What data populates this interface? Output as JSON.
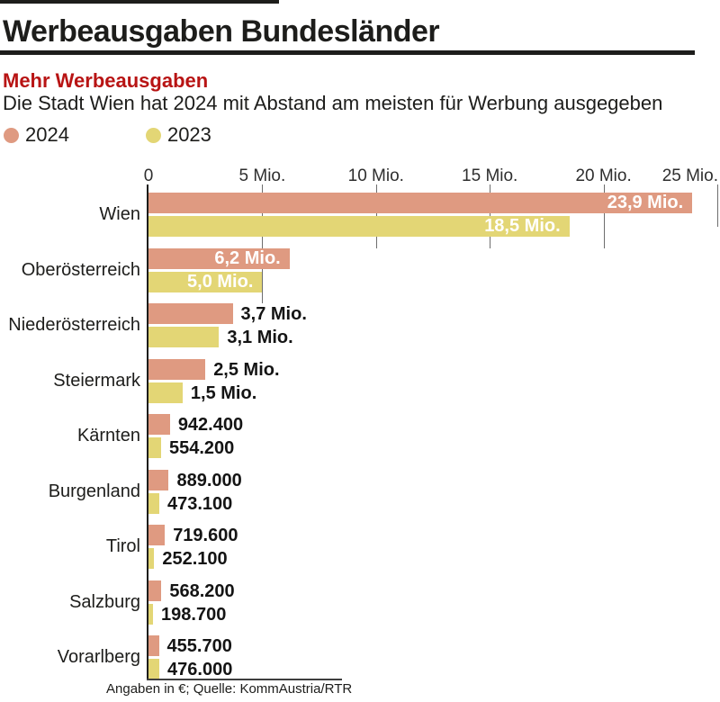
{
  "header": {
    "title": "Werbeausgaben Bundesländer",
    "kicker": "Mehr Werbeausgaben",
    "subtitle": "Die Stadt Wien hat 2024 mit Abstand am meisten für Werbung ausgegeben"
  },
  "legend": {
    "items": [
      {
        "label": "2024",
        "color": "#df9a81"
      },
      {
        "label": "2023",
        "color": "#e3d675"
      }
    ]
  },
  "colors": {
    "accent_red": "#b81414",
    "bar_2024": "#df9a81",
    "bar_2023": "#e3d675",
    "text_dark": "#1d1d1b",
    "gridline_gray": "#6e6e6e"
  },
  "footer": {
    "note": "Angaben in €; Quelle: KommAustria/RTR"
  },
  "chart_data": {
    "type": "bar",
    "orientation": "horizontal",
    "title": "Werbeausgaben Bundesländer",
    "unit": "€",
    "xlabel": "",
    "ylabel": "",
    "xlim_mio": [
      0,
      25
    ],
    "grid": "partial-tick-stubs",
    "legend_position": "top-left",
    "x_ticks": {
      "values_mio": [
        0,
        5,
        10,
        15,
        20,
        25
      ],
      "labels": [
        "0",
        "5 Mio.",
        "10 Mio.",
        "15 Mio.",
        "20 Mio.",
        "25 Mio."
      ]
    },
    "categories": [
      "Wien",
      "Oberösterreich",
      "Niederösterreich",
      "Steiermark",
      "Kärnten",
      "Burgenland",
      "Tirol",
      "Salzburg",
      "Vorarlberg"
    ],
    "series": [
      {
        "name": "2024",
        "color": "#df9a81",
        "values_mio": [
          23.9,
          6.2,
          3.7,
          2.5,
          0.9424,
          0.889,
          0.7196,
          0.5682,
          0.4557
        ],
        "value_labels": [
          "23,9 Mio.",
          "6,2 Mio.",
          "3,7 Mio.",
          "2,5 Mio.",
          "942.400",
          "889.000",
          "719.600",
          "568.200",
          "455.700"
        ]
      },
      {
        "name": "2023",
        "color": "#e3d675",
        "values_mio": [
          18.5,
          5.0,
          3.1,
          1.5,
          0.5542,
          0.4731,
          0.2521,
          0.1987,
          0.476
        ],
        "value_labels": [
          "18,5 Mio.",
          "5,0 Mio.",
          "3,1 Mio.",
          "1,5 Mio.",
          "554.200",
          "473.100",
          "252.100",
          "198.700",
          "476.000"
        ]
      }
    ],
    "labels_inside": [
      true,
      true,
      false,
      false,
      false,
      false,
      false,
      false,
      false
    ]
  }
}
